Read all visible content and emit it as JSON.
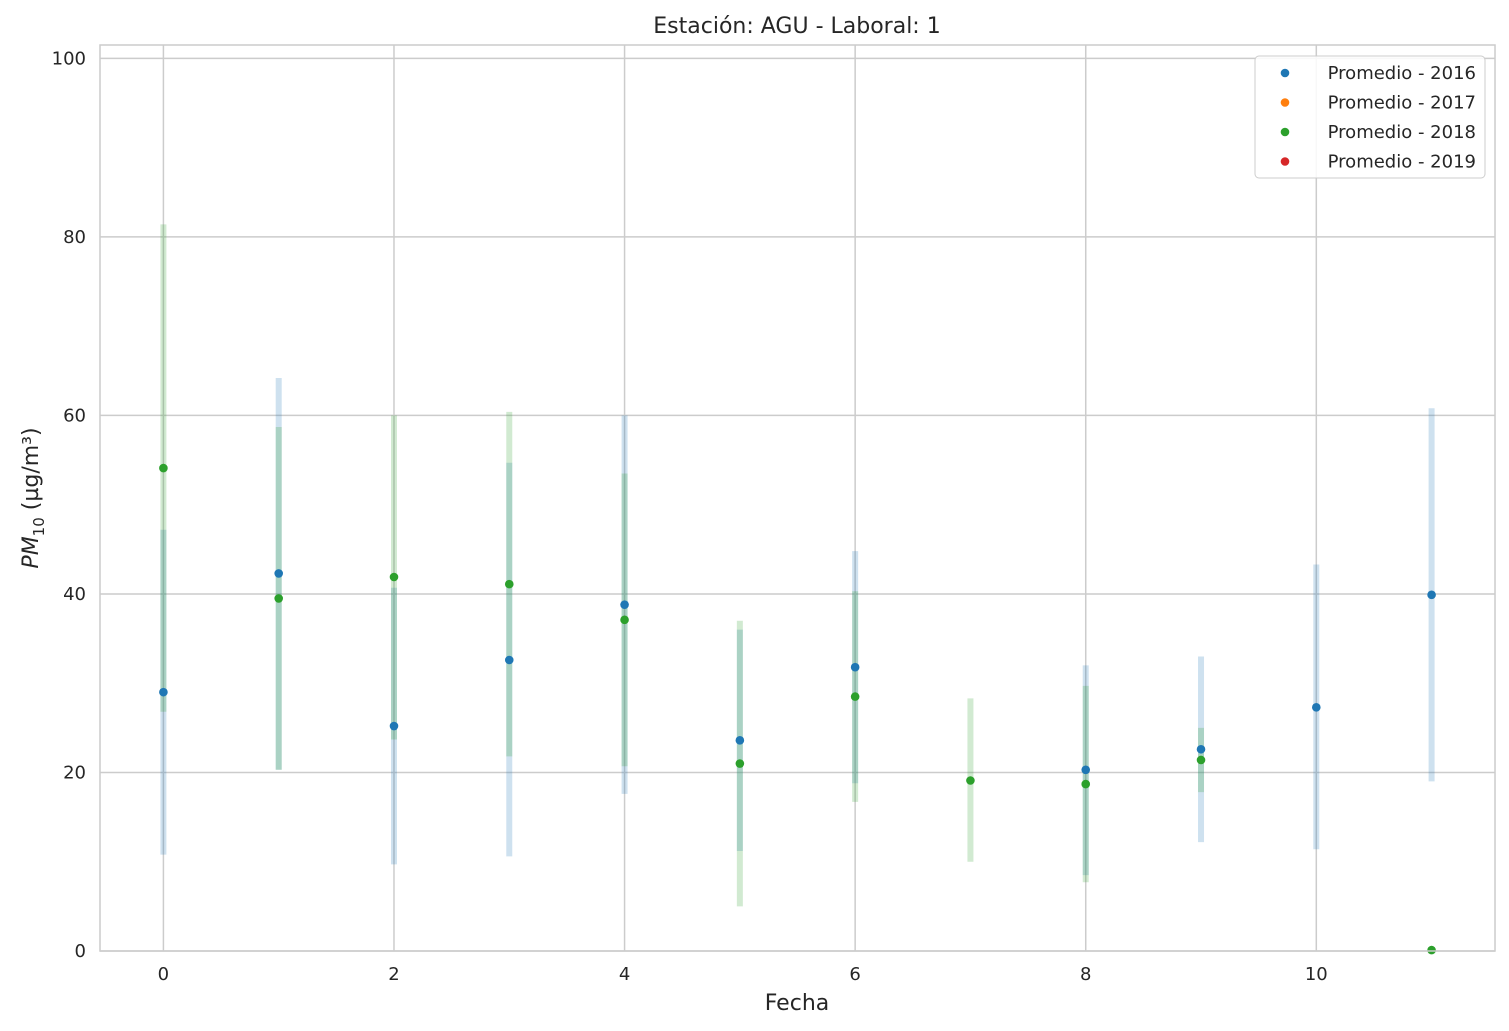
{
  "chart_data": {
    "type": "scatter",
    "title": "Estación: AGU - Laboral: 1",
    "xlabel": "Fecha",
    "ylabel_main": "PM",
    "ylabel_sub": "10",
    "ylabel_unit": " (µg/m³)",
    "xlim": [
      -0.55,
      11.55
    ],
    "ylim": [
      0,
      101.5
    ],
    "xticks": [
      0,
      2,
      4,
      6,
      8,
      10
    ],
    "yticks": [
      0,
      20,
      40,
      60,
      80,
      100
    ],
    "grid": true,
    "legend_position": "top-right",
    "series": [
      {
        "name": "Promedio - 2016",
        "color": "#1f77b4",
        "band_color": "#c3d9ea",
        "points": [
          {
            "x": 0,
            "y": 29.0,
            "lo": 10.8,
            "hi": 47.2
          },
          {
            "x": 1,
            "y": 42.3,
            "lo": 20.3,
            "hi": 64.2
          },
          {
            "x": 2,
            "y": 25.2,
            "lo": 9.7,
            "hi": 40.7
          },
          {
            "x": 3,
            "y": 32.6,
            "lo": 10.6,
            "hi": 54.7
          },
          {
            "x": 4,
            "y": 38.8,
            "lo": 17.6,
            "hi": 60.0
          },
          {
            "x": 5,
            "y": 23.6,
            "lo": 11.2,
            "hi": 36.0
          },
          {
            "x": 6,
            "y": 31.8,
            "lo": 18.8,
            "hi": 44.8
          },
          {
            "x": 8,
            "y": 20.3,
            "lo": 8.5,
            "hi": 32.0
          },
          {
            "x": 9,
            "y": 22.6,
            "lo": 12.2,
            "hi": 33.0
          },
          {
            "x": 10,
            "y": 27.3,
            "lo": 11.4,
            "hi": 43.3
          },
          {
            "x": 11,
            "y": 39.9,
            "lo": 19.0,
            "hi": 60.8
          }
        ]
      },
      {
        "name": "Promedio - 2017",
        "color": "#ff7f0e",
        "band_color": "#ffd8b3",
        "points": []
      },
      {
        "name": "Promedio - 2018",
        "color": "#2ca02c",
        "band_color": "#c6e6c6",
        "points": [
          {
            "x": 0,
            "y": 54.1,
            "lo": 26.8,
            "hi": 81.4
          },
          {
            "x": 1,
            "y": 39.5,
            "lo": 20.3,
            "hi": 58.7
          },
          {
            "x": 2,
            "y": 41.9,
            "lo": 23.7,
            "hi": 60.0
          },
          {
            "x": 3,
            "y": 41.1,
            "lo": 21.8,
            "hi": 60.4
          },
          {
            "x": 4,
            "y": 37.1,
            "lo": 20.7,
            "hi": 53.5
          },
          {
            "x": 5,
            "y": 21.0,
            "lo": 5.0,
            "hi": 37.0
          },
          {
            "x": 6,
            "y": 28.5,
            "lo": 16.7,
            "hi": 40.3
          },
          {
            "x": 7,
            "y": 19.1,
            "lo": 10.0,
            "hi": 28.3
          },
          {
            "x": 8,
            "y": 18.7,
            "lo": 7.7,
            "hi": 29.7
          },
          {
            "x": 9,
            "y": 21.4,
            "lo": 17.8,
            "hi": 25.0
          },
          {
            "x": 11,
            "y": 0.1,
            "lo": 0.0,
            "hi": 0.2
          }
        ]
      },
      {
        "name": "Promedio - 2019",
        "color": "#d62728",
        "band_color": "#f2b9b9",
        "points": []
      }
    ]
  }
}
